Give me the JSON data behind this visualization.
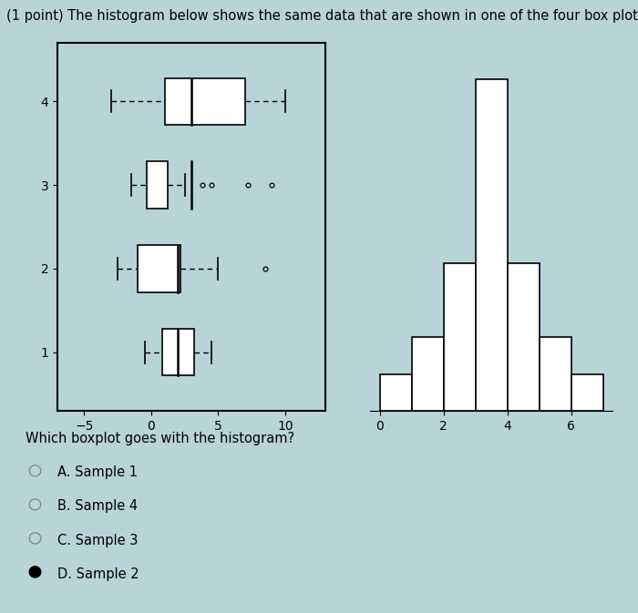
{
  "title": "(1 point) The histogram below shows the same data that are shown in one of the four box plots.",
  "title_fontsize": 10.5,
  "fig_bg_color": "#b8d4d8",
  "hist_bins": [
    0,
    1,
    2,
    3,
    4,
    5,
    6,
    7
  ],
  "hist_heights": [
    1,
    2,
    4,
    9,
    4,
    2,
    1
  ],
  "hist_xlim": [
    -0.3,
    7.3
  ],
  "hist_ylim": [
    0,
    10
  ],
  "hist_xticks": [
    0,
    2,
    4,
    6
  ],
  "boxplot_xlim": [
    -7,
    13
  ],
  "boxplot_xticks": [
    -5,
    0,
    5,
    10
  ],
  "boxplot_ylim": [
    0.3,
    4.7
  ],
  "boxplot_yticks": [
    1,
    2,
    3,
    4
  ],
  "samples": [
    {
      "y": 4,
      "median": 3.0,
      "q1": 1.0,
      "q3": 7.0,
      "whisker_low": -3.0,
      "whisker_high": 10.0,
      "outliers": []
    },
    {
      "y": 3,
      "median": 3.0,
      "q1": -0.3,
      "q3": 1.2,
      "whisker_low": -1.5,
      "whisker_high": 2.5,
      "outliers": [
        3.8,
        4.5,
        7.2,
        9.0
      ]
    },
    {
      "y": 2,
      "median": 2.0,
      "q1": -1.0,
      "q3": 2.2,
      "whisker_low": -2.5,
      "whisker_high": 5.0,
      "outliers": [
        8.5
      ]
    },
    {
      "y": 1,
      "median": 2.0,
      "q1": 0.8,
      "q3": 3.2,
      "whisker_low": -0.5,
      "whisker_high": 4.5,
      "outliers": []
    }
  ],
  "question": "Which boxplot goes with the histogram?",
  "choices": [
    "A. Sample 1",
    "B. Sample 4",
    "C. Sample 3",
    "D. Sample 2"
  ],
  "selected": 3,
  "choice_fontsize": 10.5
}
